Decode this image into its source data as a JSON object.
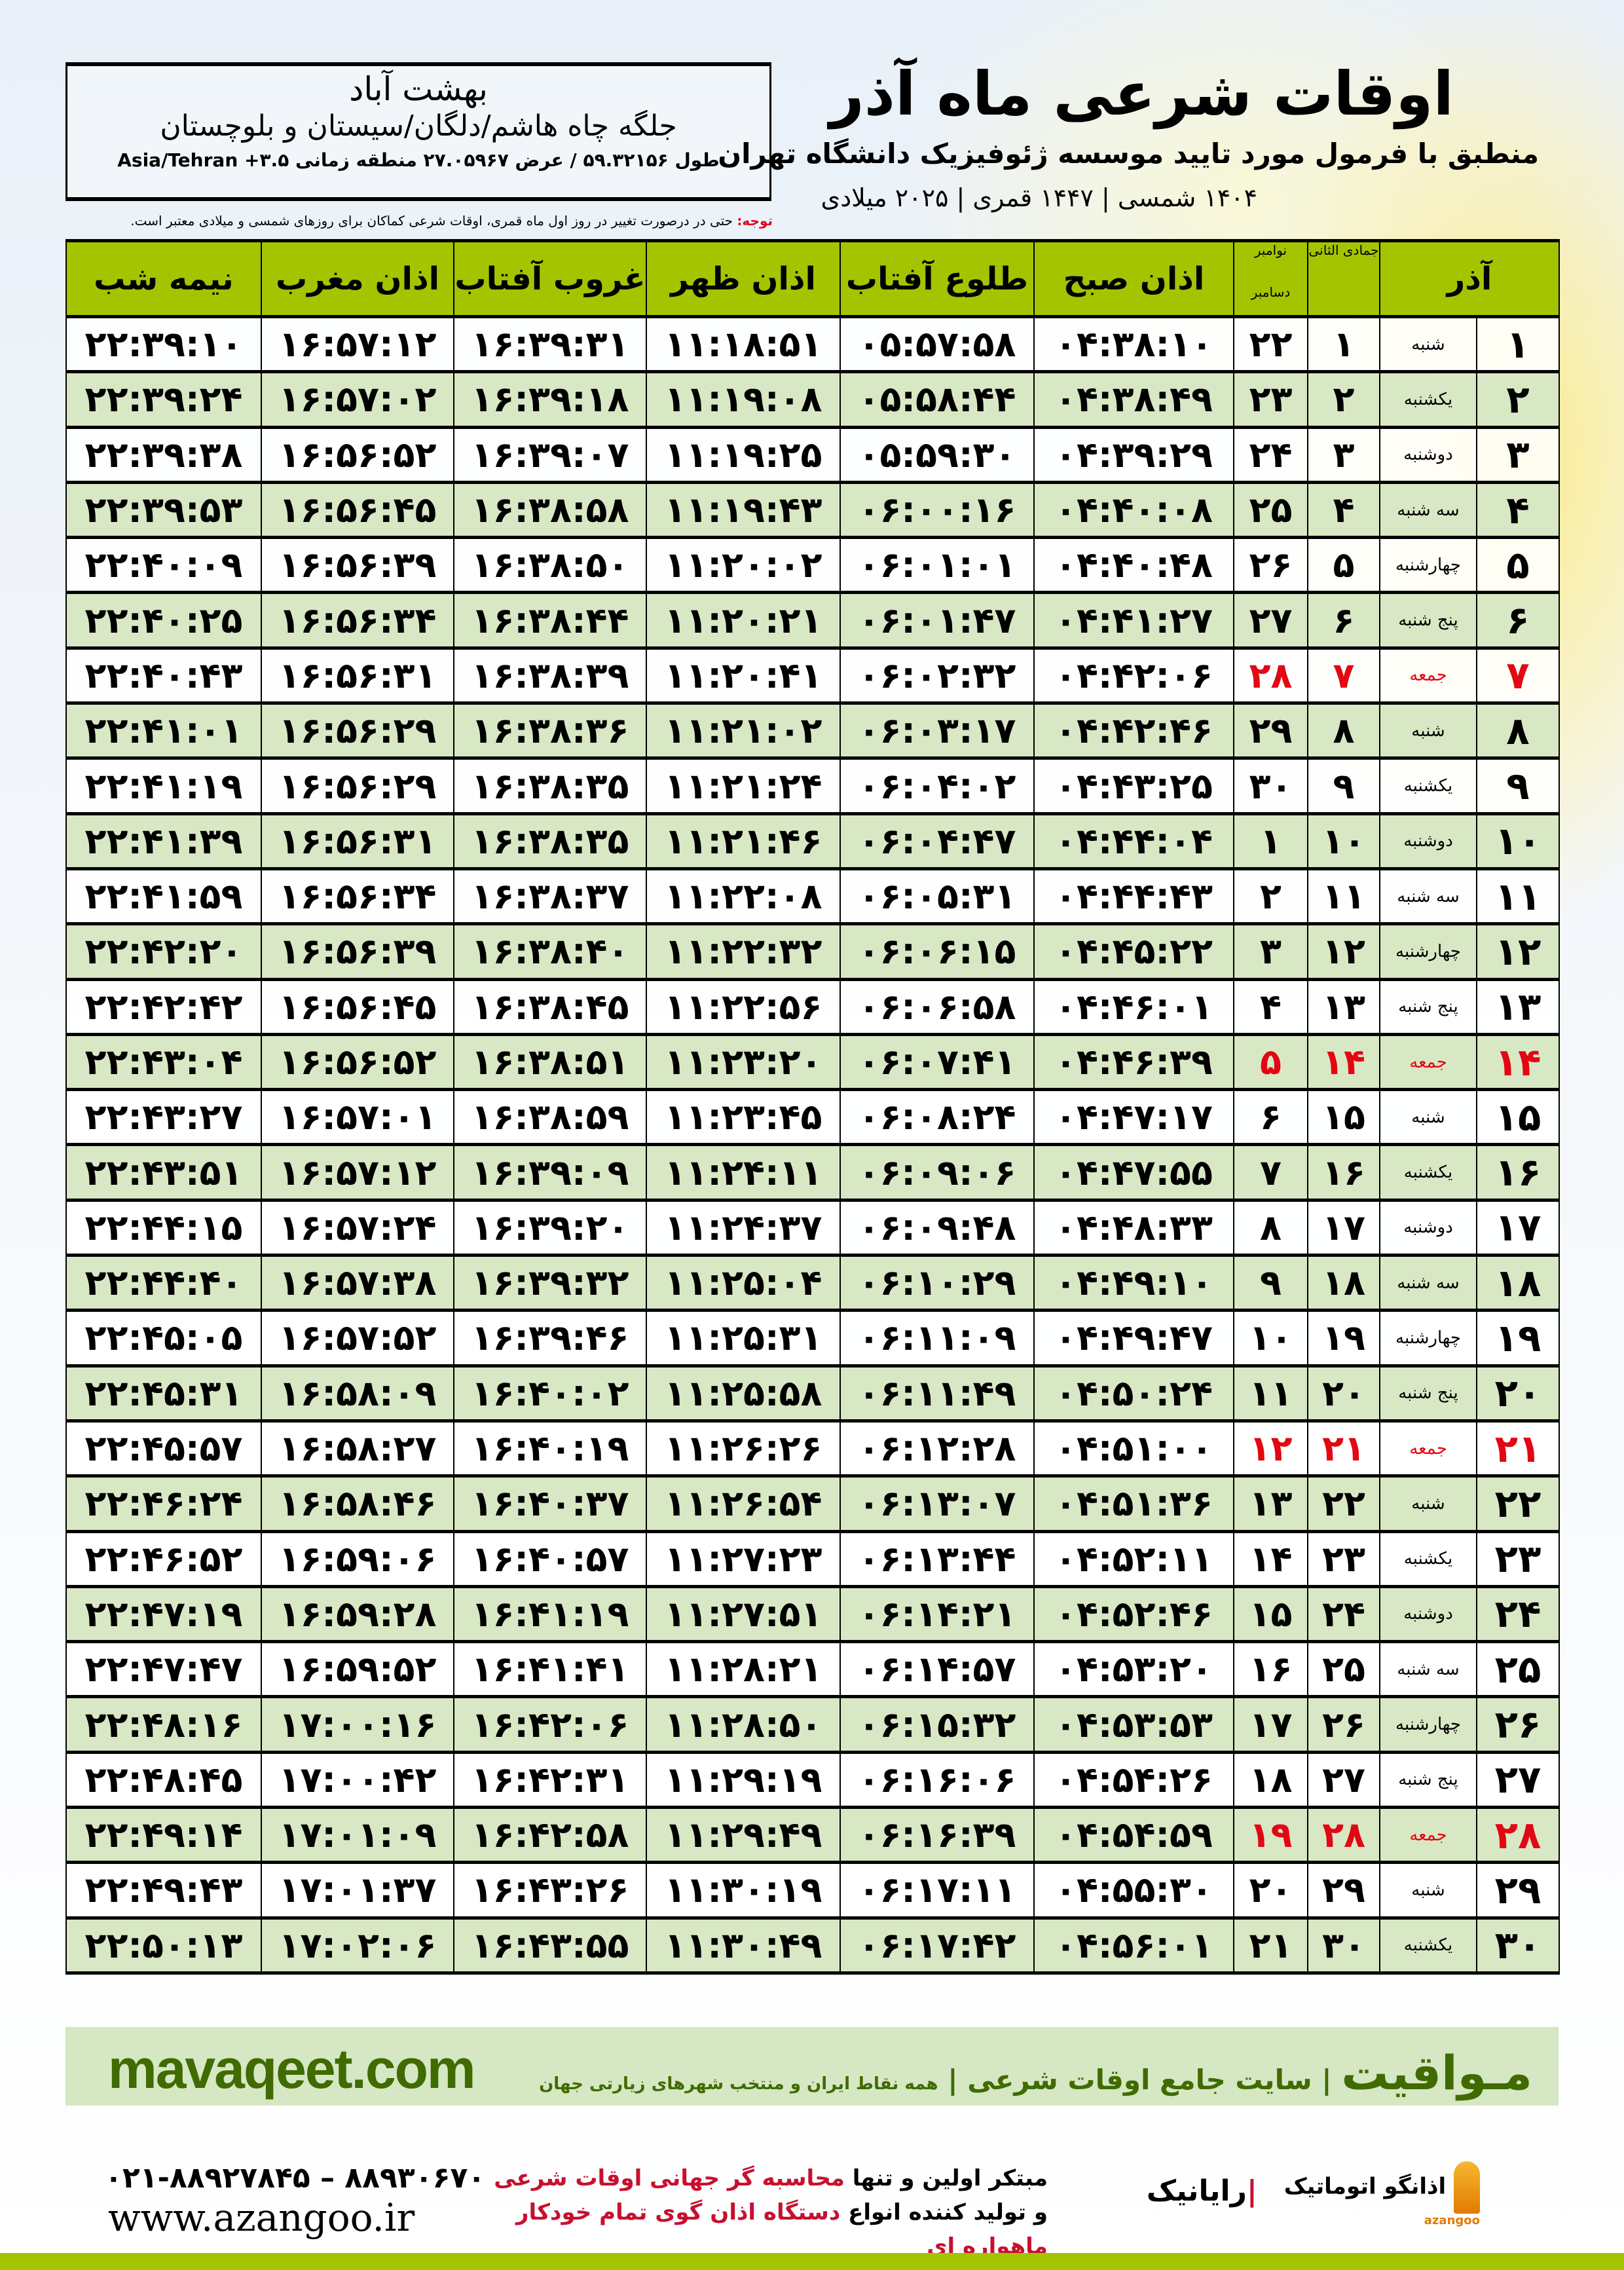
{
  "location": {
    "city": "بهشت آباد",
    "region": "جلگه چاه هاشم/دلگان/سیستان و بلوچستان",
    "coords": "طول ۵۹.۳۲۱۵۶ / عرض ۲۷.۰۵۹۶۷ منطقه زمانی ۳.۵+ Asia/Tehran"
  },
  "header": {
    "title": "اوقات شرعی ماه آذر",
    "subtitle": "منطبق با فرمول مورد تایید موسسه ژئوفیزیک دانشگاه تهران",
    "dateline": "۱۴۰۴ شمسی | ۱۴۴۷ قمری | ۲۰۲۵ میلادی"
  },
  "note": {
    "label": "توجه:",
    "text": " حتی در درصورت تغییر در روز اول ماه قمری، اوقات شرعی کماکان برای روزهای شمسی و میلادی معتبر است."
  },
  "table": {
    "headers": {
      "azar": "آذر",
      "hijri": "جمادی الثانی",
      "greg_top": "نوامبر",
      "greg_bottom": "دسامبر",
      "sobh": "اذان صبح",
      "tolu": "طلوع آفتاب",
      "zohr": "اذان ظهر",
      "ghorub": "غروب آفتاب",
      "maghreb": "اذان مغرب",
      "nime": "نیمه شب"
    },
    "holiday_color": "#e30613",
    "header_color": "#a4c400",
    "rows": [
      {
        "friday": false,
        "c": [
          "۱",
          "شنبه",
          "۱",
          "۲۲",
          "۰۴:۳۸:۱۰",
          "۰۵:۵۷:۵۸",
          "۱۱:۱۸:۵۱",
          "۱۶:۳۹:۳۱",
          "۱۶:۵۷:۱۲",
          "۲۲:۳۹:۱۰"
        ]
      },
      {
        "friday": false,
        "c": [
          "۲",
          "یکشنبه",
          "۲",
          "۲۳",
          "۰۴:۳۸:۴۹",
          "۰۵:۵۸:۴۴",
          "۱۱:۱۹:۰۸",
          "۱۶:۳۹:۱۸",
          "۱۶:۵۷:۰۲",
          "۲۲:۳۹:۲۴"
        ]
      },
      {
        "friday": false,
        "c": [
          "۳",
          "دوشنبه",
          "۳",
          "۲۴",
          "۰۴:۳۹:۲۹",
          "۰۵:۵۹:۳۰",
          "۱۱:۱۹:۲۵",
          "۱۶:۳۹:۰۷",
          "۱۶:۵۶:۵۲",
          "۲۲:۳۹:۳۸"
        ]
      },
      {
        "friday": false,
        "c": [
          "۴",
          "سه شنبه",
          "۴",
          "۲۵",
          "۰۴:۴۰:۰۸",
          "۰۶:۰۰:۱۶",
          "۱۱:۱۹:۴۳",
          "۱۶:۳۸:۵۸",
          "۱۶:۵۶:۴۵",
          "۲۲:۳۹:۵۳"
        ]
      },
      {
        "friday": false,
        "c": [
          "۵",
          "چهارشنبه",
          "۵",
          "۲۶",
          "۰۴:۴۰:۴۸",
          "۰۶:۰۱:۰۱",
          "۱۱:۲۰:۰۲",
          "۱۶:۳۸:۵۰",
          "۱۶:۵۶:۳۹",
          "۲۲:۴۰:۰۹"
        ]
      },
      {
        "friday": false,
        "c": [
          "۶",
          "پنج شنبه",
          "۶",
          "۲۷",
          "۰۴:۴۱:۲۷",
          "۰۶:۰۱:۴۷",
          "۱۱:۲۰:۲۱",
          "۱۶:۳۸:۴۴",
          "۱۶:۵۶:۳۴",
          "۲۲:۴۰:۲۵"
        ]
      },
      {
        "friday": true,
        "c": [
          "۷",
          "جمعه",
          "۷",
          "۲۸",
          "۰۴:۴۲:۰۶",
          "۰۶:۰۲:۳۲",
          "۱۱:۲۰:۴۱",
          "۱۶:۳۸:۳۹",
          "۱۶:۵۶:۳۱",
          "۲۲:۴۰:۴۳"
        ]
      },
      {
        "friday": false,
        "c": [
          "۸",
          "شنبه",
          "۸",
          "۲۹",
          "۰۴:۴۲:۴۶",
          "۰۶:۰۳:۱۷",
          "۱۱:۲۱:۰۲",
          "۱۶:۳۸:۳۶",
          "۱۶:۵۶:۲۹",
          "۲۲:۴۱:۰۱"
        ]
      },
      {
        "friday": false,
        "c": [
          "۹",
          "یکشنبه",
          "۹",
          "۳۰",
          "۰۴:۴۳:۲۵",
          "۰۶:۰۴:۰۲",
          "۱۱:۲۱:۲۴",
          "۱۶:۳۸:۳۵",
          "۱۶:۵۶:۲۹",
          "۲۲:۴۱:۱۹"
        ]
      },
      {
        "friday": false,
        "c": [
          "۱۰",
          "دوشنبه",
          "۱۰",
          "۱",
          "۰۴:۴۴:۰۴",
          "۰۶:۰۴:۴۷",
          "۱۱:۲۱:۴۶",
          "۱۶:۳۸:۳۵",
          "۱۶:۵۶:۳۱",
          "۲۲:۴۱:۳۹"
        ]
      },
      {
        "friday": false,
        "c": [
          "۱۱",
          "سه شنبه",
          "۱۱",
          "۲",
          "۰۴:۴۴:۴۳",
          "۰۶:۰۵:۳۱",
          "۱۱:۲۲:۰۸",
          "۱۶:۳۸:۳۷",
          "۱۶:۵۶:۳۴",
          "۲۲:۴۱:۵۹"
        ]
      },
      {
        "friday": false,
        "c": [
          "۱۲",
          "چهارشنبه",
          "۱۲",
          "۳",
          "۰۴:۴۵:۲۲",
          "۰۶:۰۶:۱۵",
          "۱۱:۲۲:۳۲",
          "۱۶:۳۸:۴۰",
          "۱۶:۵۶:۳۹",
          "۲۲:۴۲:۲۰"
        ]
      },
      {
        "friday": false,
        "c": [
          "۱۳",
          "پنج شنبه",
          "۱۳",
          "۴",
          "۰۴:۴۶:۰۱",
          "۰۶:۰۶:۵۸",
          "۱۱:۲۲:۵۶",
          "۱۶:۳۸:۴۵",
          "۱۶:۵۶:۴۵",
          "۲۲:۴۲:۴۲"
        ]
      },
      {
        "friday": true,
        "c": [
          "۱۴",
          "جمعه",
          "۱۴",
          "۵",
          "۰۴:۴۶:۳۹",
          "۰۶:۰۷:۴۱",
          "۱۱:۲۳:۲۰",
          "۱۶:۳۸:۵۱",
          "۱۶:۵۶:۵۲",
          "۲۲:۴۳:۰۴"
        ]
      },
      {
        "friday": false,
        "c": [
          "۱۵",
          "شنبه",
          "۱۵",
          "۶",
          "۰۴:۴۷:۱۷",
          "۰۶:۰۸:۲۴",
          "۱۱:۲۳:۴۵",
          "۱۶:۳۸:۵۹",
          "۱۶:۵۷:۰۱",
          "۲۲:۴۳:۲۷"
        ]
      },
      {
        "friday": false,
        "c": [
          "۱۶",
          "یکشنبه",
          "۱۶",
          "۷",
          "۰۴:۴۷:۵۵",
          "۰۶:۰۹:۰۶",
          "۱۱:۲۴:۱۱",
          "۱۶:۳۹:۰۹",
          "۱۶:۵۷:۱۲",
          "۲۲:۴۳:۵۱"
        ]
      },
      {
        "friday": false,
        "c": [
          "۱۷",
          "دوشنبه",
          "۱۷",
          "۸",
          "۰۴:۴۸:۳۳",
          "۰۶:۰۹:۴۸",
          "۱۱:۲۴:۳۷",
          "۱۶:۳۹:۲۰",
          "۱۶:۵۷:۲۴",
          "۲۲:۴۴:۱۵"
        ]
      },
      {
        "friday": false,
        "c": [
          "۱۸",
          "سه شنبه",
          "۱۸",
          "۹",
          "۰۴:۴۹:۱۰",
          "۰۶:۱۰:۲۹",
          "۱۱:۲۵:۰۴",
          "۱۶:۳۹:۳۲",
          "۱۶:۵۷:۳۸",
          "۲۲:۴۴:۴۰"
        ]
      },
      {
        "friday": false,
        "c": [
          "۱۹",
          "چهارشنبه",
          "۱۹",
          "۱۰",
          "۰۴:۴۹:۴۷",
          "۰۶:۱۱:۰۹",
          "۱۱:۲۵:۳۱",
          "۱۶:۳۹:۴۶",
          "۱۶:۵۷:۵۲",
          "۲۲:۴۵:۰۵"
        ]
      },
      {
        "friday": false,
        "c": [
          "۲۰",
          "پنج شنبه",
          "۲۰",
          "۱۱",
          "۰۴:۵۰:۲۴",
          "۰۶:۱۱:۴۹",
          "۱۱:۲۵:۵۸",
          "۱۶:۴۰:۰۲",
          "۱۶:۵۸:۰۹",
          "۲۲:۴۵:۳۱"
        ]
      },
      {
        "friday": true,
        "c": [
          "۲۱",
          "جمعه",
          "۲۱",
          "۱۲",
          "۰۴:۵۱:۰۰",
          "۰۶:۱۲:۲۸",
          "۱۱:۲۶:۲۶",
          "۱۶:۴۰:۱۹",
          "۱۶:۵۸:۲۷",
          "۲۲:۴۵:۵۷"
        ]
      },
      {
        "friday": false,
        "c": [
          "۲۲",
          "شنبه",
          "۲۲",
          "۱۳",
          "۰۴:۵۱:۳۶",
          "۰۶:۱۳:۰۷",
          "۱۱:۲۶:۵۴",
          "۱۶:۴۰:۳۷",
          "۱۶:۵۸:۴۶",
          "۲۲:۴۶:۲۴"
        ]
      },
      {
        "friday": false,
        "c": [
          "۲۳",
          "یکشنبه",
          "۲۳",
          "۱۴",
          "۰۴:۵۲:۱۱",
          "۰۶:۱۳:۴۴",
          "۱۱:۲۷:۲۳",
          "۱۶:۴۰:۵۷",
          "۱۶:۵۹:۰۶",
          "۲۲:۴۶:۵۲"
        ]
      },
      {
        "friday": false,
        "c": [
          "۲۴",
          "دوشنبه",
          "۲۴",
          "۱۵",
          "۰۴:۵۲:۴۶",
          "۰۶:۱۴:۲۱",
          "۱۱:۲۷:۵۱",
          "۱۶:۴۱:۱۹",
          "۱۶:۵۹:۲۸",
          "۲۲:۴۷:۱۹"
        ]
      },
      {
        "friday": false,
        "c": [
          "۲۵",
          "سه شنبه",
          "۲۵",
          "۱۶",
          "۰۴:۵۳:۲۰",
          "۰۶:۱۴:۵۷",
          "۱۱:۲۸:۲۱",
          "۱۶:۴۱:۴۱",
          "۱۶:۵۹:۵۲",
          "۲۲:۴۷:۴۷"
        ]
      },
      {
        "friday": false,
        "c": [
          "۲۶",
          "چهارشنبه",
          "۲۶",
          "۱۷",
          "۰۴:۵۳:۵۳",
          "۰۶:۱۵:۳۲",
          "۱۱:۲۸:۵۰",
          "۱۶:۴۲:۰۶",
          "۱۷:۰۰:۱۶",
          "۲۲:۴۸:۱۶"
        ]
      },
      {
        "friday": false,
        "c": [
          "۲۷",
          "پنج شنبه",
          "۲۷",
          "۱۸",
          "۰۴:۵۴:۲۶",
          "۰۶:۱۶:۰۶",
          "۱۱:۲۹:۱۹",
          "۱۶:۴۲:۳۱",
          "۱۷:۰۰:۴۲",
          "۲۲:۴۸:۴۵"
        ]
      },
      {
        "friday": true,
        "c": [
          "۲۸",
          "جمعه",
          "۲۸",
          "۱۹",
          "۰۴:۵۴:۵۹",
          "۰۶:۱۶:۳۹",
          "۱۱:۲۹:۴۹",
          "۱۶:۴۲:۵۸",
          "۱۷:۰۱:۰۹",
          "۲۲:۴۹:۱۴"
        ]
      },
      {
        "friday": false,
        "c": [
          "۲۹",
          "شنبه",
          "۲۹",
          "۲۰",
          "۰۴:۵۵:۳۰",
          "۰۶:۱۷:۱۱",
          "۱۱:۳۰:۱۹",
          "۱۶:۴۳:۲۶",
          "۱۷:۰۱:۳۷",
          "۲۲:۴۹:۴۳"
        ]
      },
      {
        "friday": false,
        "c": [
          "۳۰",
          "یکشنبه",
          "۳۰",
          "۲۱",
          "۰۴:۵۶:۰۱",
          "۰۶:۱۷:۴۲",
          "۱۱:۳۰:۴۹",
          "۱۶:۴۳:۵۵",
          "۱۷:۰۲:۰۶",
          "۲۲:۵۰:۱۳"
        ]
      }
    ]
  },
  "footer": {
    "brand": "مـواقیت",
    "tagline": "| سایت جامع اوقات شرعی |",
    "slogan": "همه نقاط ایران و منتخب شهرهای زیارتی جهان",
    "url": "mavaqeet.com",
    "phone": "۰۲۱-۸۸۹۲۷۸۴۵ – ۸۸۹۳۰۶۷۰",
    "web": "www.azangoo.ir",
    "promo_line1_a": "مبتکر اولین و تنها ",
    "promo_line1_b": "محاسبه گر جهانی اوقات شرعی",
    "promo_line2_a": "و تولید کننده انواع ",
    "promo_line2_b": "دستگاه اذان گوی تمام خودکار ماهواره ای",
    "logo_rayanik": "رایانیک",
    "logo_azangoo": "اذانگو اتوماتیک",
    "logo_azangoo_latin": "azangoo",
    "accent_color": "#3f6b00",
    "band_color": "#d6e7c3"
  }
}
